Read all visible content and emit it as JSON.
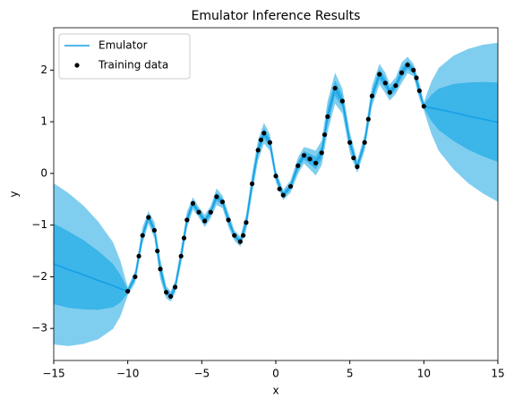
{
  "chart_data": {
    "type": "line",
    "title": "Emulator Inference Results",
    "x_label": "x",
    "y_label": "y",
    "xlim": [
      -15,
      15
    ],
    "ylim": [
      -3.62,
      2.82
    ],
    "xticks": [
      {
        "value": -15,
        "label": "−15"
      },
      {
        "value": -10,
        "label": "−10"
      },
      {
        "value": -5,
        "label": "−5"
      },
      0,
      5,
      10,
      15
    ],
    "yticks": [
      {
        "value": -3,
        "label": "−3"
      },
      {
        "value": -2,
        "label": "−2"
      },
      {
        "value": -1,
        "label": "−1"
      },
      0,
      1,
      2
    ],
    "legend_position": "upper-left",
    "series": [
      {
        "name": "Emulator",
        "color": "#14a0e6",
        "band_colors": [
          "#80ceef",
          "#3cb5e9"
        ],
        "x": [
          -15,
          -14,
          -13,
          -12,
          -11,
          -10.5,
          -10,
          -9.5,
          -9,
          -8.6,
          -8.2,
          -7.8,
          -7.4,
          -7.1,
          -6.8,
          -6.4,
          -6,
          -5.6,
          -5.2,
          -4.8,
          -4.4,
          -4,
          -3.6,
          -3.2,
          -2.8,
          -2.4,
          -2,
          -1.6,
          -1.2,
          -0.8,
          -0.4,
          0,
          0.5,
          1,
          1.5,
          1.9,
          2.3,
          2.7,
          3.1,
          3.5,
          4,
          4.5,
          5,
          5.5,
          6,
          6.5,
          7,
          7.4,
          7.7,
          8.1,
          8.5,
          8.9,
          9.3,
          9.7,
          10,
          10.5,
          11,
          12,
          13,
          14,
          15
        ],
        "values": [
          -1.75,
          -1.86,
          -1.96,
          -2.07,
          -2.17,
          -2.23,
          -2.28,
          -2.0,
          -1.2,
          -0.85,
          -1.1,
          -1.85,
          -2.3,
          -2.38,
          -2.2,
          -1.6,
          -0.9,
          -0.58,
          -0.75,
          -0.92,
          -0.75,
          -0.45,
          -0.55,
          -0.9,
          -1.2,
          -1.32,
          -0.95,
          -0.2,
          0.45,
          0.78,
          0.6,
          -0.05,
          -0.42,
          -0.25,
          0.15,
          0.35,
          0.28,
          0.2,
          0.4,
          1.1,
          1.65,
          1.4,
          0.6,
          0.13,
          0.6,
          1.5,
          1.92,
          1.75,
          1.57,
          1.7,
          1.95,
          2.1,
          2.0,
          1.6,
          1.3,
          1.27,
          1.24,
          1.18,
          1.11,
          1.05,
          0.99
        ],
        "std": [
          0.78,
          0.74,
          0.67,
          0.57,
          0.42,
          0.27,
          0.04,
          0.06,
          0.08,
          0.06,
          0.08,
          0.1,
          0.06,
          0.05,
          0.06,
          0.08,
          0.08,
          0.06,
          0.05,
          0.06,
          0.06,
          0.08,
          0.06,
          0.07,
          0.05,
          0.05,
          0.08,
          0.1,
          0.1,
          0.1,
          0.08,
          0.06,
          0.05,
          0.06,
          0.08,
          0.08,
          0.1,
          0.12,
          0.12,
          0.15,
          0.15,
          0.12,
          0.1,
          0.06,
          0.08,
          0.1,
          0.1,
          0.1,
          0.08,
          0.08,
          0.1,
          0.08,
          0.06,
          0.08,
          0.04,
          0.25,
          0.4,
          0.55,
          0.65,
          0.72,
          0.77
        ]
      },
      {
        "name": "Training data",
        "type": "scatter",
        "color": "#000000",
        "x": [
          -10,
          -9.5,
          -9,
          -8.6,
          -8.2,
          -7.8,
          -7.4,
          -7.1,
          -6.8,
          -6.4,
          -6,
          -5.6,
          -5.2,
          -4.8,
          -4.4,
          -4,
          -3.6,
          -3.2,
          -2.8,
          -2.4,
          -2,
          -1.6,
          -1.2,
          -0.8,
          -0.4,
          0,
          0.5,
          1,
          1.5,
          1.9,
          2.3,
          2.7,
          3.1,
          3.5,
          4,
          4.5,
          5,
          5.5,
          6,
          6.5,
          7,
          7.4,
          7.7,
          8.1,
          8.5,
          8.9,
          9.3,
          9.7,
          10,
          -9.25,
          -8,
          -6.2,
          -2.2,
          -1,
          0.25,
          3.3,
          5.25,
          6.25,
          9.5
        ],
        "values": [
          -2.28,
          -2.0,
          -1.2,
          -0.85,
          -1.1,
          -1.85,
          -2.3,
          -2.38,
          -2.2,
          -1.6,
          -0.9,
          -0.58,
          -0.75,
          -0.92,
          -0.75,
          -0.45,
          -0.55,
          -0.9,
          -1.2,
          -1.32,
          -0.95,
          -0.2,
          0.45,
          0.78,
          0.6,
          -0.05,
          -0.42,
          -0.25,
          0.15,
          0.35,
          0.28,
          0.2,
          0.4,
          1.1,
          1.65,
          1.4,
          0.6,
          0.13,
          0.6,
          1.5,
          1.92,
          1.75,
          1.57,
          1.7,
          1.95,
          2.1,
          2.0,
          1.6,
          1.3,
          -1.6,
          -1.5,
          -1.25,
          -1.2,
          0.65,
          -0.3,
          0.75,
          0.3,
          1.05,
          1.85
        ]
      }
    ]
  }
}
